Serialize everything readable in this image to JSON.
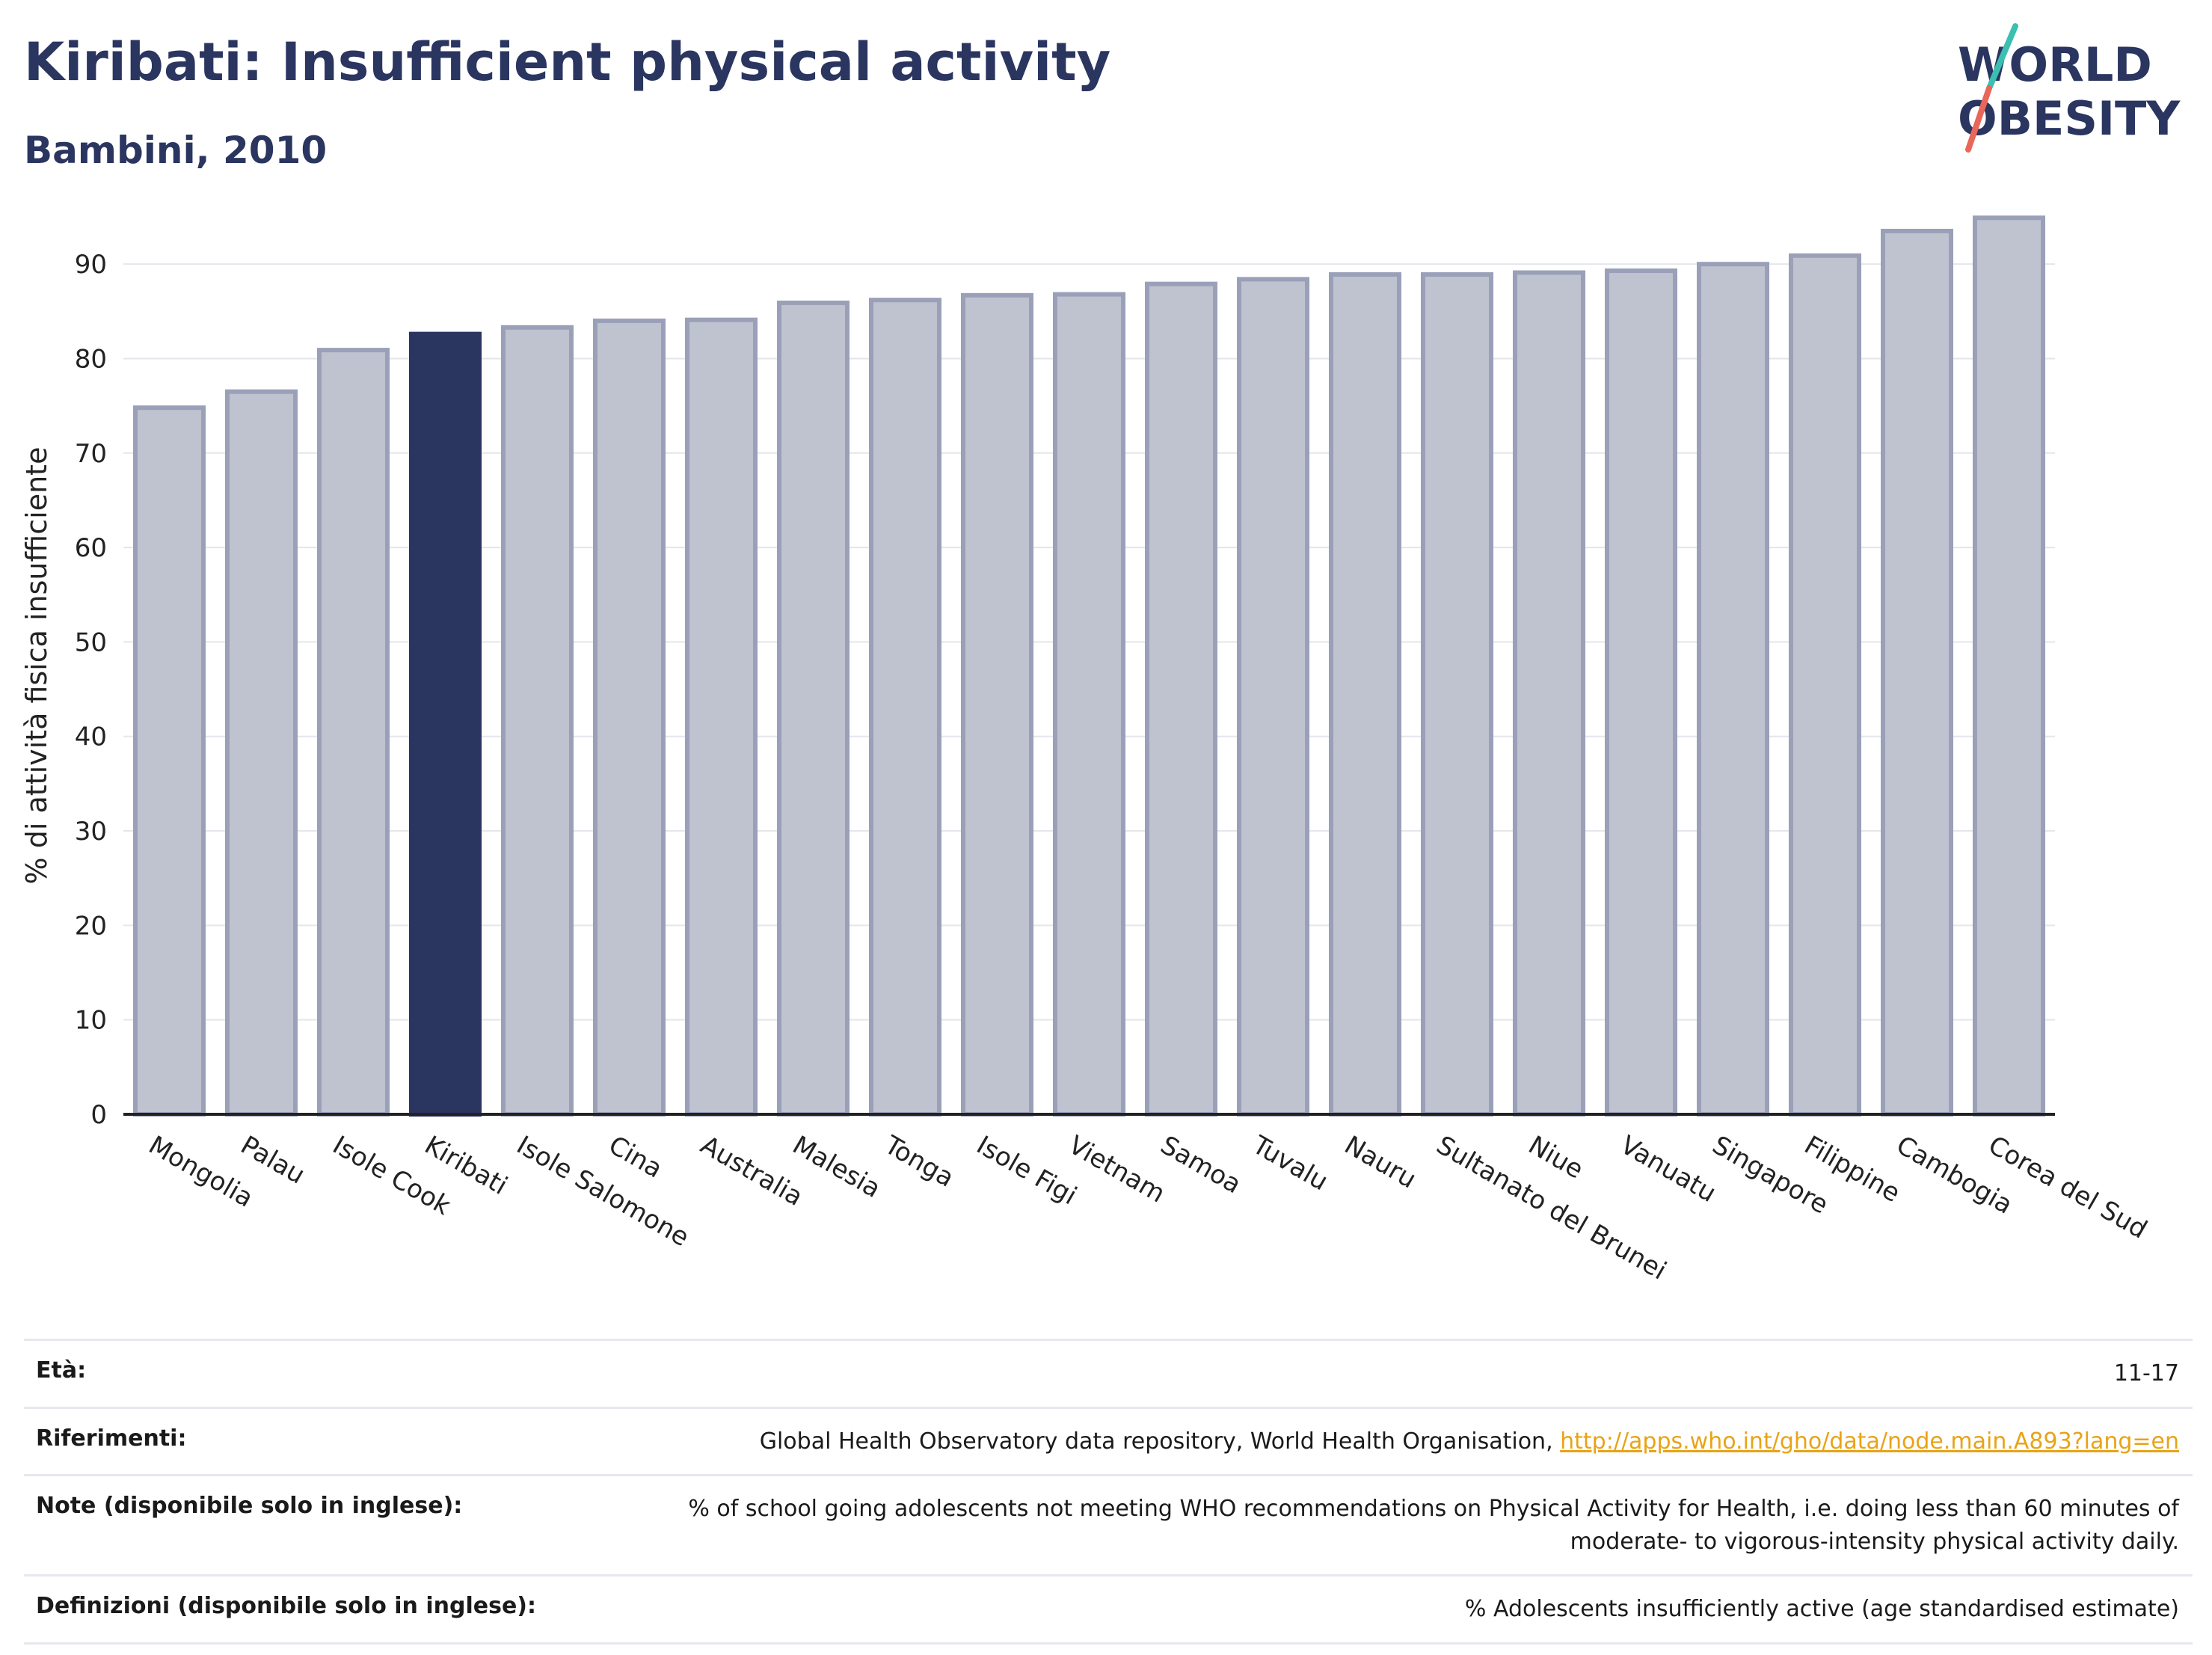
{
  "header": {
    "title": "Kiribati: Insufficient physical activity",
    "subtitle": "Bambini, 2010"
  },
  "logo": {
    "line1": "WORLD",
    "line2": "OBESITY"
  },
  "chart_data": {
    "type": "bar",
    "ylabel": "% di attività fisica insufficiente",
    "xlabel": "",
    "ylim": [
      0,
      95
    ],
    "yticks": [
      0,
      10,
      20,
      30,
      40,
      50,
      60,
      70,
      80,
      90
    ],
    "grid": true,
    "highlight": "Kiribati",
    "colors": {
      "highlight": "#2a3560",
      "bar_fill": "#bfc2cf",
      "bar_edge": "#9aa0b8"
    },
    "categories": [
      "Mongolia",
      "Palau",
      "Isole Cook",
      "Kiribati",
      "Isole Salomone",
      "Cina",
      "Australia",
      "Malesia",
      "Tonga",
      "Isole Figi",
      "Vietnam",
      "Samoa",
      "Tuvalu",
      "Nauru",
      "Sultanato del Brunei",
      "Niue",
      "Vanuatu",
      "Singapore",
      "Filippine",
      "Cambogia",
      "Corea del Sud"
    ],
    "values": [
      74.8,
      76.5,
      80.9,
      82.6,
      83.3,
      84.0,
      84.1,
      85.9,
      86.2,
      86.7,
      86.8,
      87.9,
      88.4,
      88.9,
      88.9,
      89.1,
      89.3,
      90.0,
      90.9,
      93.5,
      94.9
    ]
  },
  "info": {
    "eta_label": "Età:",
    "eta_value": "11-17",
    "riferimenti_label": "Riferimenti:",
    "riferimenti_text": "Global Health Observatory data repository, World Health Organisation, ",
    "riferimenti_link": "http://apps.who.int/gho/data/node.main.A893?lang=en",
    "note_label": "Note (disponibile solo in inglese):",
    "note_value": "% of school going adolescents not meeting WHO recommendations on Physical Activity for Health, i.e. doing less than 60 minutes of moderate- to vigorous-intensity physical activity daily.",
    "definizioni_label": "Definizioni (disponibile solo in inglese):",
    "definizioni_value": "% Adolescents insufficiently active (age standardised estimate)"
  }
}
